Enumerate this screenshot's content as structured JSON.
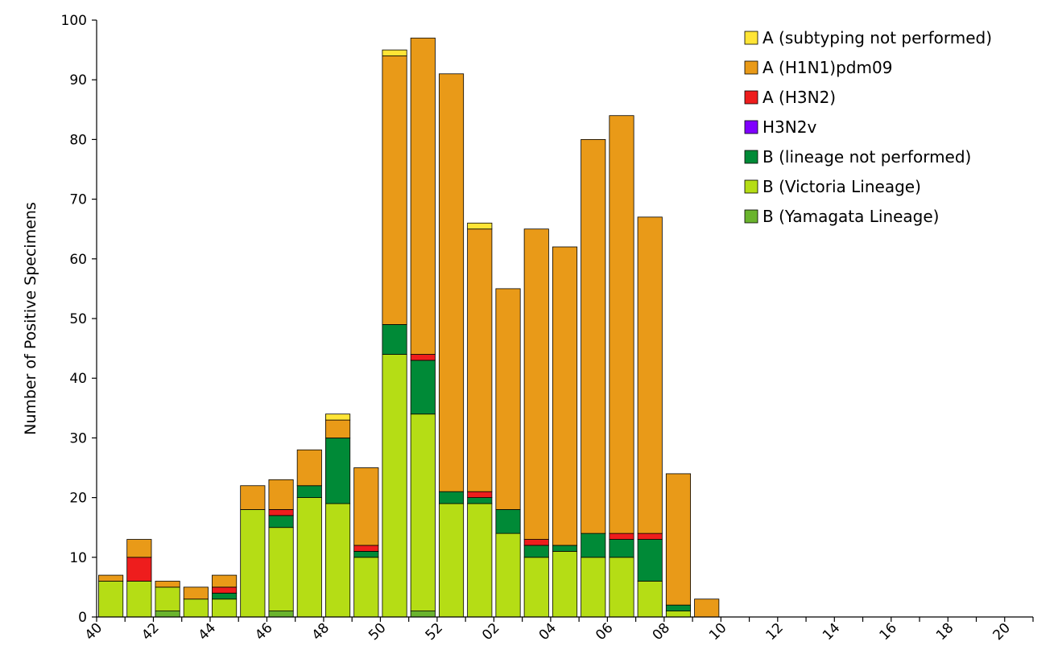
{
  "chart_data": {
    "type": "bar",
    "stacked": true,
    "title": "",
    "xlabel": "",
    "ylabel": "Number of Positive Specimens",
    "ylim": [
      0,
      100
    ],
    "yticks": [
      0,
      10,
      20,
      30,
      40,
      50,
      60,
      70,
      80,
      90,
      100
    ],
    "categories": [
      "40",
      "41",
      "42",
      "43",
      "44",
      "45",
      "46",
      "47",
      "48",
      "49",
      "50",
      "51",
      "52",
      "01",
      "02",
      "03",
      "04",
      "05",
      "06",
      "07",
      "08",
      "09",
      "10",
      "11",
      "12",
      "13",
      "14",
      "15",
      "16",
      "17",
      "18",
      "19",
      "20"
    ],
    "xtick_labels": [
      "40",
      "",
      "42",
      "",
      "44",
      "",
      "46",
      "",
      "48",
      "",
      "50",
      "",
      "52",
      "",
      "02",
      "",
      "04",
      "",
      "06",
      "",
      "08",
      "",
      "10",
      "",
      "12",
      "",
      "14",
      "",
      "16",
      "",
      "18",
      "",
      "20"
    ],
    "legend_position": "top-right",
    "grid": false,
    "series": [
      {
        "name": "B (Yamagata Lineage)",
        "color": "#6ab42d",
        "values": [
          0,
          0,
          1,
          0,
          0,
          0,
          1,
          0,
          0,
          0,
          0,
          1,
          0,
          0,
          0,
          0,
          0,
          0,
          0,
          0,
          0,
          0,
          0,
          0,
          0,
          0,
          0,
          0,
          0,
          0,
          0,
          0,
          0
        ]
      },
      {
        "name": "B (Victoria Lineage)",
        "color": "#b5dd15",
        "values": [
          6,
          6,
          4,
          3,
          3,
          18,
          14,
          20,
          19,
          10,
          44,
          33,
          19,
          19,
          14,
          10,
          11,
          10,
          10,
          6,
          1,
          0,
          0,
          0,
          0,
          0,
          0,
          0,
          0,
          0,
          0,
          0,
          0
        ]
      },
      {
        "name": "B (lineage not performed)",
        "color": "#008a37",
        "values": [
          0,
          0,
          0,
          0,
          1,
          0,
          2,
          2,
          11,
          1,
          5,
          9,
          2,
          1,
          4,
          2,
          1,
          4,
          3,
          7,
          1,
          0,
          0,
          0,
          0,
          0,
          0,
          0,
          0,
          0,
          0,
          0,
          0
        ]
      },
      {
        "name": "H3N2v",
        "color": "#8000ff",
        "values": [
          0,
          0,
          0,
          0,
          0,
          0,
          0,
          0,
          0,
          0,
          0,
          0,
          0,
          0,
          0,
          0,
          0,
          0,
          0,
          0,
          0,
          0,
          0,
          0,
          0,
          0,
          0,
          0,
          0,
          0,
          0,
          0,
          0
        ]
      },
      {
        "name": "A (H3N2)",
        "color": "#ee1d1d",
        "values": [
          0,
          4,
          0,
          0,
          1,
          0,
          1,
          0,
          0,
          1,
          0,
          1,
          0,
          1,
          0,
          1,
          0,
          0,
          1,
          1,
          0,
          0,
          0,
          0,
          0,
          0,
          0,
          0,
          0,
          0,
          0,
          0,
          0
        ]
      },
      {
        "name": "A (H1N1)pdm09",
        "color": "#e99a18",
        "values": [
          1,
          3,
          1,
          2,
          2,
          4,
          5,
          6,
          3,
          13,
          45,
          53,
          70,
          44,
          37,
          52,
          50,
          66,
          70,
          53,
          22,
          3,
          0,
          0,
          0,
          0,
          0,
          0,
          0,
          0,
          0,
          0,
          0
        ]
      },
      {
        "name": "A (subtyping not performed)",
        "color": "#ffe536",
        "values": [
          0,
          0,
          0,
          0,
          0,
          0,
          0,
          0,
          1,
          0,
          1,
          0,
          0,
          1,
          0,
          0,
          0,
          0,
          0,
          0,
          0,
          0,
          0,
          0,
          0,
          0,
          0,
          0,
          0,
          0,
          0,
          0,
          0
        ]
      }
    ],
    "legend_order": [
      "A (subtyping not performed)",
      "A (H1N1)pdm09",
      "A (H3N2)",
      "H3N2v",
      "B (lineage not performed)",
      "B (Victoria Lineage)",
      "B (Yamagata Lineage)"
    ]
  }
}
